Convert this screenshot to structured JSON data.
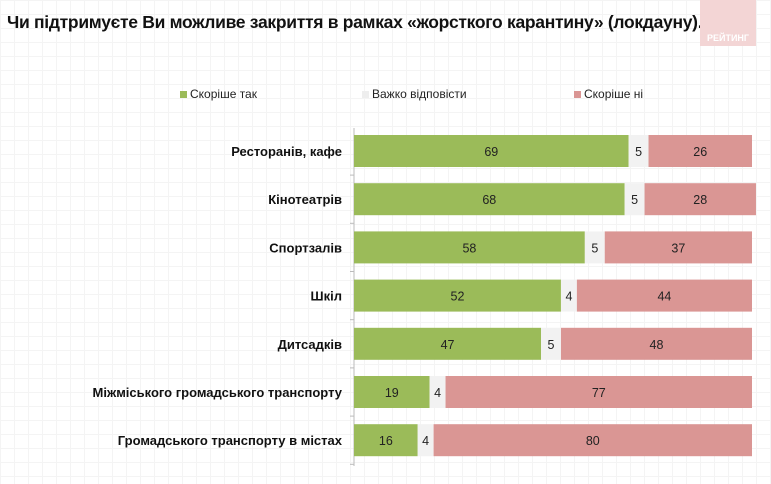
{
  "title": "Чи підтримуєте Ви можливе закриття в рамках «жорсткого карантину» (локдауну)...?",
  "logo_text": "РЕЙТИНГ",
  "chart_data": {
    "type": "bar",
    "stacked": true,
    "orientation": "horizontal",
    "title": "Чи підтримуєте Ви можливе закриття в рамках «жорсткого карантину» (локдауну)...?",
    "legend_placement": "top",
    "categories": [
      "Ресторанів, кафе",
      "Кінотеатрів",
      "Спортзалів",
      "Шкіл",
      "Дитсадків",
      "Міжміського громадського транспорту",
      "Громадського транспорту в містах"
    ],
    "series": [
      {
        "name": "Скоріше так",
        "color": "#9bbb59",
        "values": [
          69,
          68,
          58,
          52,
          47,
          19,
          16
        ]
      },
      {
        "name": "Важко відповісти",
        "color": "#f2f2f2",
        "values": [
          5,
          5,
          5,
          4,
          5,
          4,
          4
        ]
      },
      {
        "name": "Скоріше ні",
        "color": "#da9694",
        "values": [
          26,
          28,
          37,
          44,
          48,
          77,
          80
        ]
      }
    ],
    "xlim": [
      0,
      100
    ]
  }
}
